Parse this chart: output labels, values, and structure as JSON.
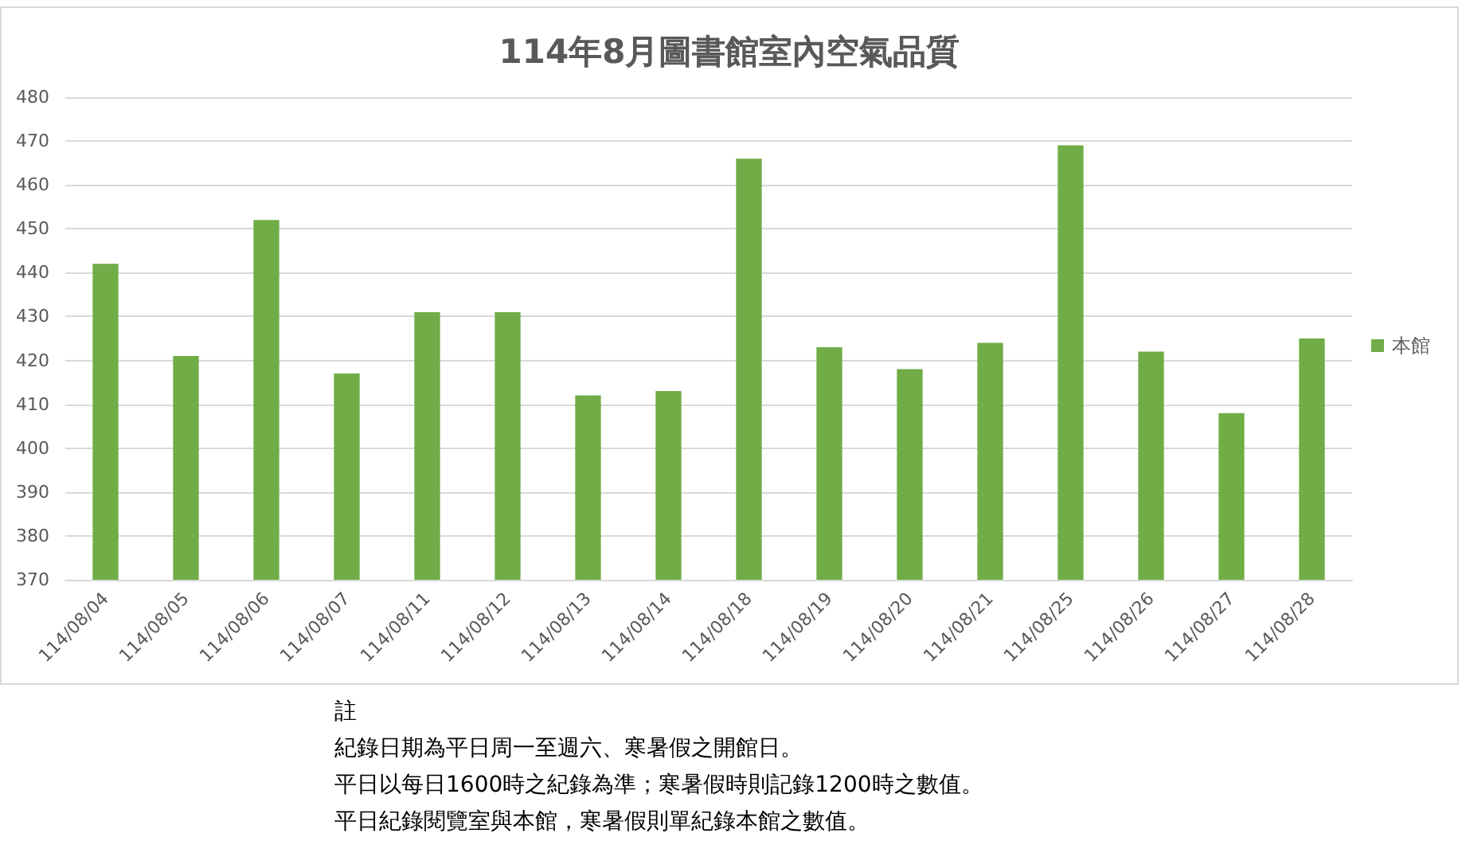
{
  "chart_data": {
    "type": "bar",
    "title": "114年8月圖書館室內空氣品質",
    "categories": [
      "114/08/04",
      "114/08/05",
      "114/08/06",
      "114/08/07",
      "114/08/11",
      "114/08/12",
      "114/08/13",
      "114/08/14",
      "114/08/18",
      "114/08/19",
      "114/08/20",
      "114/08/21",
      "114/08/25",
      "114/08/26",
      "114/08/27",
      "114/08/28"
    ],
    "series": [
      {
        "name": "本館",
        "color": "#70ad47",
        "values": [
          442,
          421,
          452,
          417,
          431,
          431,
          412,
          413,
          466,
          423,
          418,
          424,
          469,
          422,
          408,
          425
        ]
      }
    ],
    "ylim": [
      370,
      480
    ],
    "yticks": [
      370,
      380,
      390,
      400,
      410,
      420,
      430,
      440,
      450,
      460,
      470,
      480
    ],
    "grid": "y",
    "legend": "right",
    "annotations": [
      "註",
      "紀錄日期為平日周一至週六、寒暑假之開館日。",
      "平日以每日1600時之紀錄為準；寒暑假時則記錄1200時之數值。",
      "平日紀錄閱覽室與本館，寒暑假則單紀錄本館之數值。"
    ]
  }
}
